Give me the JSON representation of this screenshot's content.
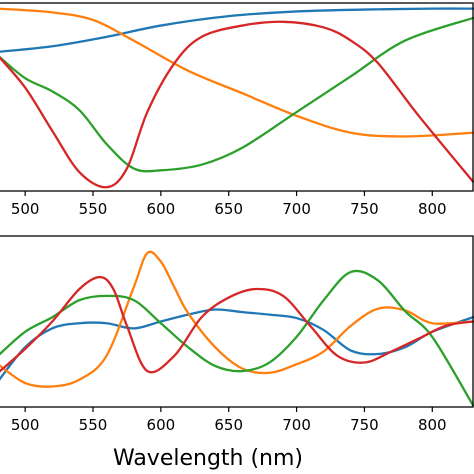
{
  "chart_data": [
    {
      "type": "line",
      "panel": "top",
      "xlim": [
        480,
        830
      ],
      "ylim": [
        0,
        1
      ],
      "grid": false,
      "x_ticks": [
        500,
        550,
        600,
        650,
        700,
        750,
        800
      ],
      "x_tick_labels": [
        "500",
        "550",
        "600",
        "650",
        "700",
        "750",
        "800"
      ],
      "series": [
        {
          "color": "#1f77b4",
          "x": [
            480,
            520,
            560,
            600,
            650,
            700,
            750,
            800,
            830
          ],
          "y": [
            0.74,
            0.77,
            0.82,
            0.88,
            0.93,
            0.955,
            0.965,
            0.97,
            0.97
          ]
        },
        {
          "color": "#ff7f0e",
          "x": [
            480,
            520,
            550,
            580,
            620,
            660,
            700,
            740,
            780,
            830
          ],
          "y": [
            0.97,
            0.95,
            0.91,
            0.8,
            0.64,
            0.52,
            0.4,
            0.31,
            0.29,
            0.31
          ]
        },
        {
          "color": "#2ca02c",
          "x": [
            480,
            500,
            520,
            540,
            560,
            580,
            600,
            630,
            660,
            700,
            740,
            780,
            830
          ],
          "y": [
            0.72,
            0.6,
            0.53,
            0.43,
            0.25,
            0.12,
            0.11,
            0.14,
            0.23,
            0.42,
            0.61,
            0.8,
            0.92
          ]
        },
        {
          "color": "#d62728",
          "x": [
            480,
            500,
            520,
            540,
            560,
            575,
            590,
            610,
            630,
            660,
            690,
            720,
            740,
            760,
            790,
            830
          ],
          "y": [
            0.72,
            0.55,
            0.32,
            0.1,
            0.02,
            0.12,
            0.42,
            0.68,
            0.82,
            0.88,
            0.9,
            0.87,
            0.8,
            0.68,
            0.4,
            0.05
          ]
        }
      ]
    },
    {
      "type": "line",
      "panel": "bottom",
      "xlim": [
        480,
        830
      ],
      "ylim": [
        -1,
        1
      ],
      "grid": false,
      "x_ticks": [
        500,
        550,
        600,
        650,
        700,
        750,
        800
      ],
      "x_tick_labels": [
        "500",
        "550",
        "600",
        "650",
        "700",
        "750",
        "800"
      ],
      "xlabel": "Wavelength (nm)",
      "series": [
        {
          "color": "#1f77b4",
          "x": [
            480,
            500,
            520,
            540,
            560,
            580,
            600,
            620,
            640,
            660,
            680,
            700,
            720,
            740,
            760,
            780,
            800,
            830
          ],
          "y": [
            -0.7,
            -0.3,
            -0.08,
            -0.02,
            -0.02,
            -0.08,
            0.0,
            0.08,
            0.14,
            0.11,
            0.08,
            0.04,
            -0.1,
            -0.34,
            -0.38,
            -0.3,
            -0.12,
            0.05
          ]
        },
        {
          "color": "#ff7f0e",
          "x": [
            480,
            500,
            520,
            540,
            560,
            580,
            590,
            600,
            610,
            620,
            640,
            660,
            680,
            700,
            720,
            740,
            760,
            780,
            800,
            830
          ],
          "y": [
            -0.5,
            -0.72,
            -0.76,
            -0.68,
            -0.4,
            0.4,
            0.8,
            0.7,
            0.4,
            0.1,
            -0.3,
            -0.55,
            -0.6,
            -0.5,
            -0.35,
            -0.05,
            0.15,
            0.13,
            -0.02,
            0.0
          ]
        },
        {
          "color": "#2ca02c",
          "x": [
            480,
            500,
            520,
            540,
            560,
            580,
            600,
            620,
            640,
            660,
            680,
            700,
            720,
            740,
            760,
            780,
            800,
            830
          ],
          "y": [
            -0.4,
            -0.12,
            0.05,
            0.25,
            0.3,
            0.25,
            -0.02,
            -0.3,
            -0.52,
            -0.58,
            -0.48,
            -0.18,
            0.25,
            0.58,
            0.48,
            0.12,
            -0.18,
            -0.98
          ]
        },
        {
          "color": "#d62728",
          "x": [
            480,
            500,
            520,
            540,
            555,
            565,
            575,
            590,
            610,
            630,
            650,
            670,
            690,
            710,
            730,
            750,
            770,
            790,
            810,
            830
          ],
          "y": [
            -0.6,
            -0.32,
            0.0,
            0.38,
            0.52,
            0.38,
            -0.05,
            -0.58,
            -0.4,
            0.05,
            0.28,
            0.38,
            0.3,
            -0.05,
            -0.4,
            -0.48,
            -0.35,
            -0.2,
            -0.05,
            0.0
          ]
        }
      ]
    }
  ]
}
